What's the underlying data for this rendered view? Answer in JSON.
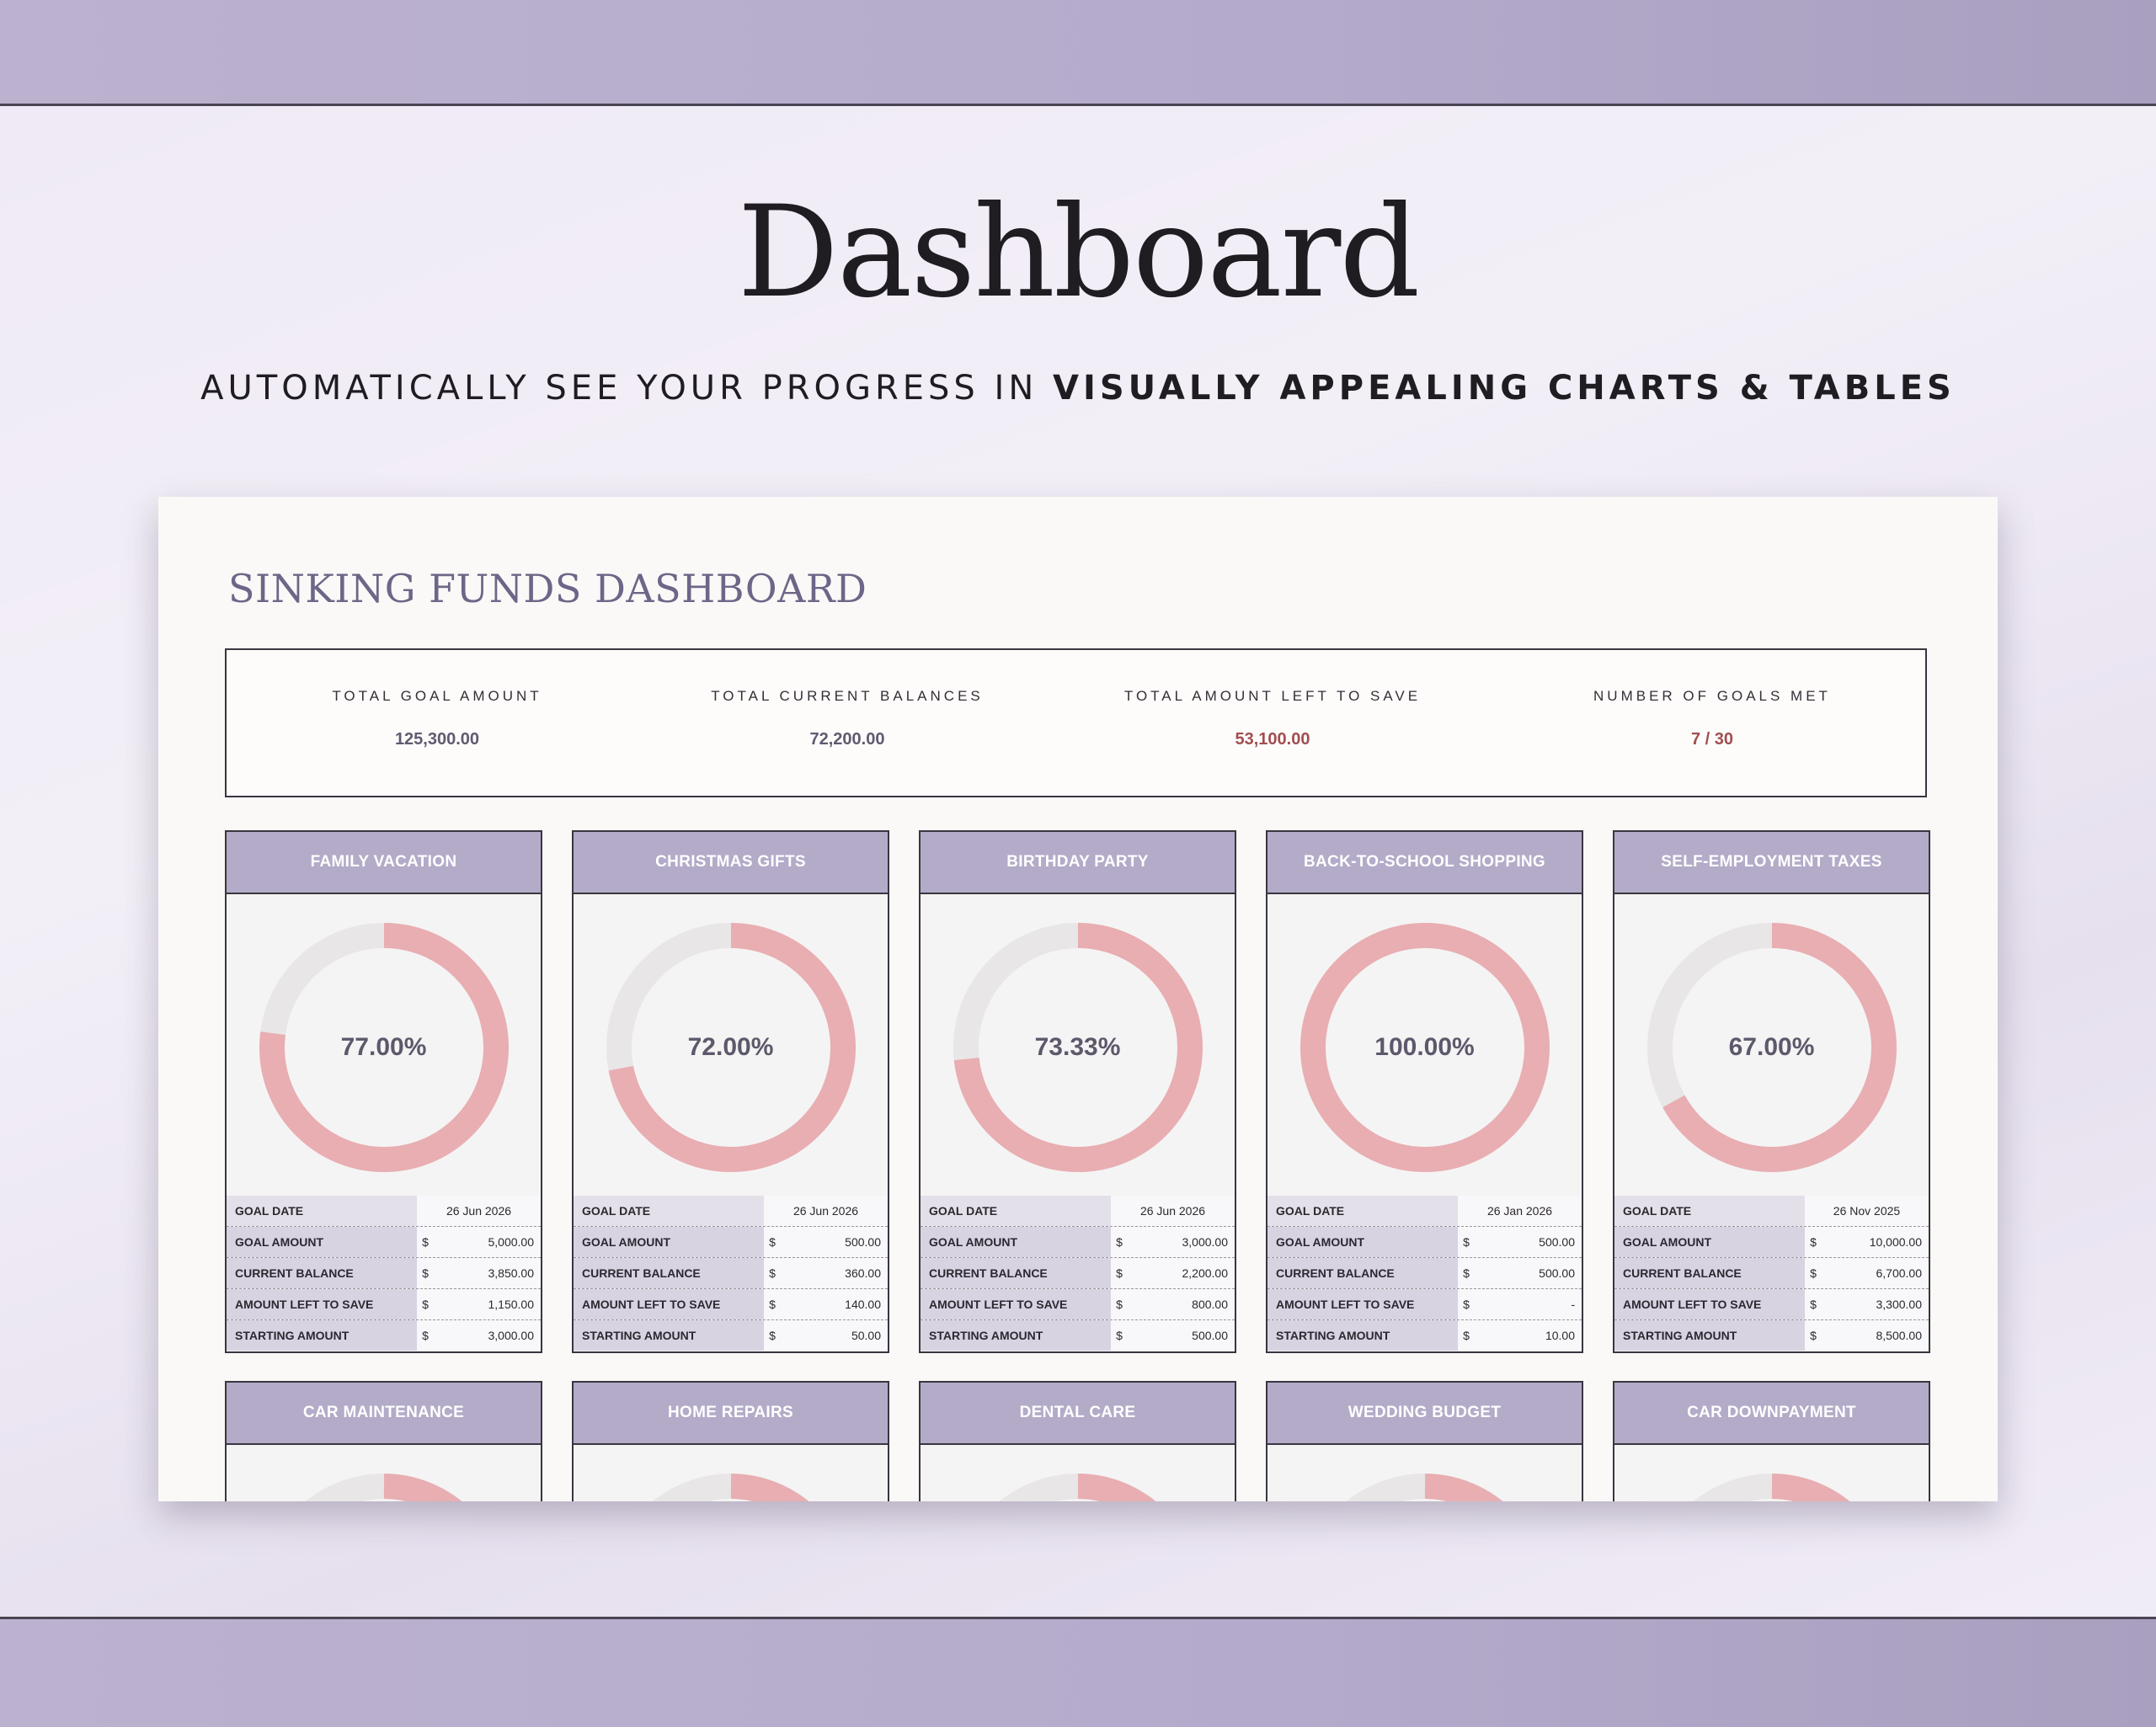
{
  "hero": {
    "title": "Dashboard",
    "subtitle_normal": "AUTOMATICALLY SEE YOUR PROGRESS IN ",
    "subtitle_bold": "VISUALLY APPEALING CHARTS & TABLES"
  },
  "sheet": {
    "title": "SINKING FUNDS DASHBOARD",
    "summary": [
      {
        "label": "TOTAL GOAL AMOUNT",
        "value": "125,300.00"
      },
      {
        "label": "TOTAL CURRENT BALANCES",
        "value": "72,200.00"
      },
      {
        "label": "TOTAL AMOUNT LEFT TO SAVE",
        "value": "53,100.00"
      },
      {
        "label": "NUMBER OF GOALS MET",
        "value": "7 / 30"
      }
    ],
    "row_labels": [
      "GOAL DATE",
      "GOAL AMOUNT",
      "CURRENT BALANCE",
      "AMOUNT LEFT TO SAVE",
      "STARTING AMOUNT"
    ],
    "currency": "$",
    "colors": {
      "progress": "#e8aeb2",
      "track": "#e8e6e7",
      "header": "#b3abc8"
    },
    "funds": [
      {
        "name": "FAMILY VACATION",
        "pct_text": "77.00%",
        "pct": 0.77,
        "goal_date": "26 Jun 2026",
        "goal_amount": "5,000.00",
        "current_balance": "3,850.00",
        "left_to_save": "1,150.00",
        "starting_amount": "3,000.00"
      },
      {
        "name": "CHRISTMAS GIFTS",
        "pct_text": "72.00%",
        "pct": 0.72,
        "goal_date": "26 Jun 2026",
        "goal_amount": "500.00",
        "current_balance": "360.00",
        "left_to_save": "140.00",
        "starting_amount": "50.00"
      },
      {
        "name": "BIRTHDAY PARTY",
        "pct_text": "73.33%",
        "pct": 0.7333,
        "goal_date": "26 Jun 2026",
        "goal_amount": "3,000.00",
        "current_balance": "2,200.00",
        "left_to_save": "800.00",
        "starting_amount": "500.00"
      },
      {
        "name": "BACK-TO-SCHOOL SHOPPING",
        "pct_text": "100.00%",
        "pct": 1.0,
        "goal_date": "26 Jan 2026",
        "goal_amount": "500.00",
        "current_balance": "500.00",
        "left_to_save": "-",
        "starting_amount": "10.00"
      },
      {
        "name": "SELF-EMPLOYMENT TAXES",
        "pct_text": "67.00%",
        "pct": 0.67,
        "goal_date": "26 Nov 2025",
        "goal_amount": "10,000.00",
        "current_balance": "6,700.00",
        "left_to_save": "3,300.00",
        "starting_amount": "8,500.00"
      }
    ],
    "funds_row2": [
      {
        "name": "CAR MAINTENANCE"
      },
      {
        "name": "HOME REPAIRS"
      },
      {
        "name": "DENTAL CARE"
      },
      {
        "name": "WEDDING BUDGET"
      },
      {
        "name": "CAR DOWNPAYMENT"
      }
    ]
  }
}
